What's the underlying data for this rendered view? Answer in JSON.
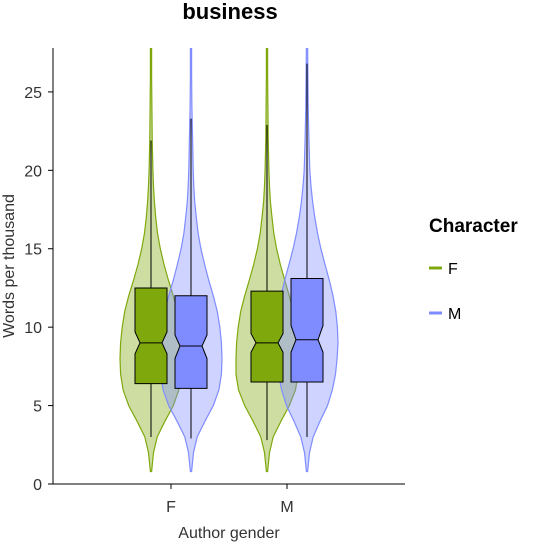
{
  "chart_data": {
    "type": "violin",
    "title": "business",
    "xlabel": "Author gender",
    "ylabel": "Words per thousand",
    "categories": [
      "F",
      "M"
    ],
    "ylim": [
      0,
      27.8
    ],
    "yticks": [
      0,
      5,
      10,
      15,
      20,
      25
    ],
    "legend": {
      "title": "Character",
      "position": "right",
      "entries": [
        {
          "label": "F",
          "color": "#7fa80c"
        },
        {
          "label": "M",
          "color": "#7f8cff"
        }
      ]
    },
    "series": [
      {
        "name": "F",
        "color": "#7fa80c",
        "stats": [
          {
            "category": "F",
            "min": 0.8,
            "max": 28,
            "whisker_low": 3.0,
            "whisker_high": 21.9,
            "q1": 6.4,
            "median": 9.0,
            "q3": 12.5,
            "notch_low": 8.3,
            "notch_high": 9.7,
            "density": [
              [
                0.8,
                0.02
              ],
              [
                2,
                0.08
              ],
              [
                3,
                0.2
              ],
              [
                4,
                0.45
              ],
              [
                5,
                0.72
              ],
              [
                6,
                0.9
              ],
              [
                7,
                0.98
              ],
              [
                8,
                1.0
              ],
              [
                9,
                0.98
              ],
              [
                10,
                0.93
              ],
              [
                11,
                0.85
              ],
              [
                12,
                0.72
              ],
              [
                13,
                0.56
              ],
              [
                14,
                0.42
              ],
              [
                15,
                0.3
              ],
              [
                16,
                0.21
              ],
              [
                17,
                0.15
              ],
              [
                18,
                0.11
              ],
              [
                19,
                0.08
              ],
              [
                20,
                0.06
              ],
              [
                22,
                0.04
              ],
              [
                24,
                0.03
              ],
              [
                26,
                0.02
              ],
              [
                28,
                0.02
              ]
            ]
          },
          {
            "category": "M",
            "min": 0.8,
            "max": 28,
            "whisker_low": 2.8,
            "whisker_high": 22.9,
            "q1": 6.5,
            "median": 9.0,
            "q3": 12.3,
            "notch_low": 8.4,
            "notch_high": 9.6,
            "density": [
              [
                0.8,
                0.02
              ],
              [
                2,
                0.08
              ],
              [
                3,
                0.2
              ],
              [
                4,
                0.45
              ],
              [
                5,
                0.72
              ],
              [
                6,
                0.92
              ],
              [
                7,
                1.0
              ],
              [
                8,
                1.0
              ],
              [
                9,
                0.98
              ],
              [
                10,
                0.93
              ],
              [
                11,
                0.85
              ],
              [
                12,
                0.72
              ],
              [
                13,
                0.57
              ],
              [
                14,
                0.43
              ],
              [
                15,
                0.31
              ],
              [
                16,
                0.22
              ],
              [
                17,
                0.16
              ],
              [
                18,
                0.11
              ],
              [
                19,
                0.08
              ],
              [
                20,
                0.06
              ],
              [
                22,
                0.04
              ],
              [
                24,
                0.03
              ],
              [
                26,
                0.02
              ],
              [
                28,
                0.02
              ]
            ]
          }
        ]
      },
      {
        "name": "M",
        "color": "#7f8cff",
        "stats": [
          {
            "category": "F",
            "min": 0.8,
            "max": 28,
            "whisker_low": 2.9,
            "whisker_high": 23.3,
            "q1": 6.1,
            "median": 8.8,
            "q3": 12.0,
            "notch_low": 8.0,
            "notch_high": 9.5,
            "density": [
              [
                0.8,
                0.02
              ],
              [
                2,
                0.08
              ],
              [
                3,
                0.2
              ],
              [
                4,
                0.45
              ],
              [
                5,
                0.72
              ],
              [
                6,
                0.9
              ],
              [
                7,
                0.98
              ],
              [
                8,
                1.0
              ],
              [
                9,
                0.98
              ],
              [
                10,
                0.93
              ],
              [
                11,
                0.85
              ],
              [
                12,
                0.72
              ],
              [
                13,
                0.57
              ],
              [
                14,
                0.44
              ],
              [
                15,
                0.32
              ],
              [
                16,
                0.23
              ],
              [
                17,
                0.17
              ],
              [
                18,
                0.12
              ],
              [
                19,
                0.09
              ],
              [
                20,
                0.07
              ],
              [
                22,
                0.05
              ],
              [
                24,
                0.03
              ],
              [
                26,
                0.02
              ],
              [
                28,
                0.02
              ]
            ]
          },
          {
            "category": "M",
            "min": 0.8,
            "max": 28,
            "whisker_low": 3.0,
            "whisker_high": 26.8,
            "q1": 6.5,
            "median": 9.2,
            "q3": 13.1,
            "notch_low": 8.4,
            "notch_high": 10.1,
            "density": [
              [
                0.8,
                0.02
              ],
              [
                2,
                0.08
              ],
              [
                3,
                0.2
              ],
              [
                4,
                0.42
              ],
              [
                5,
                0.66
              ],
              [
                6,
                0.82
              ],
              [
                7,
                0.92
              ],
              [
                8,
                0.97
              ],
              [
                9,
                1.0
              ],
              [
                10,
                0.98
              ],
              [
                11,
                0.93
              ],
              [
                12,
                0.84
              ],
              [
                13,
                0.72
              ],
              [
                14,
                0.58
              ],
              [
                15,
                0.45
              ],
              [
                16,
                0.34
              ],
              [
                17,
                0.25
              ],
              [
                18,
                0.18
              ],
              [
                19,
                0.13
              ],
              [
                20,
                0.09
              ],
              [
                22,
                0.06
              ],
              [
                24,
                0.04
              ],
              [
                26,
                0.03
              ],
              [
                28,
                0.02
              ]
            ]
          }
        ]
      }
    ]
  }
}
